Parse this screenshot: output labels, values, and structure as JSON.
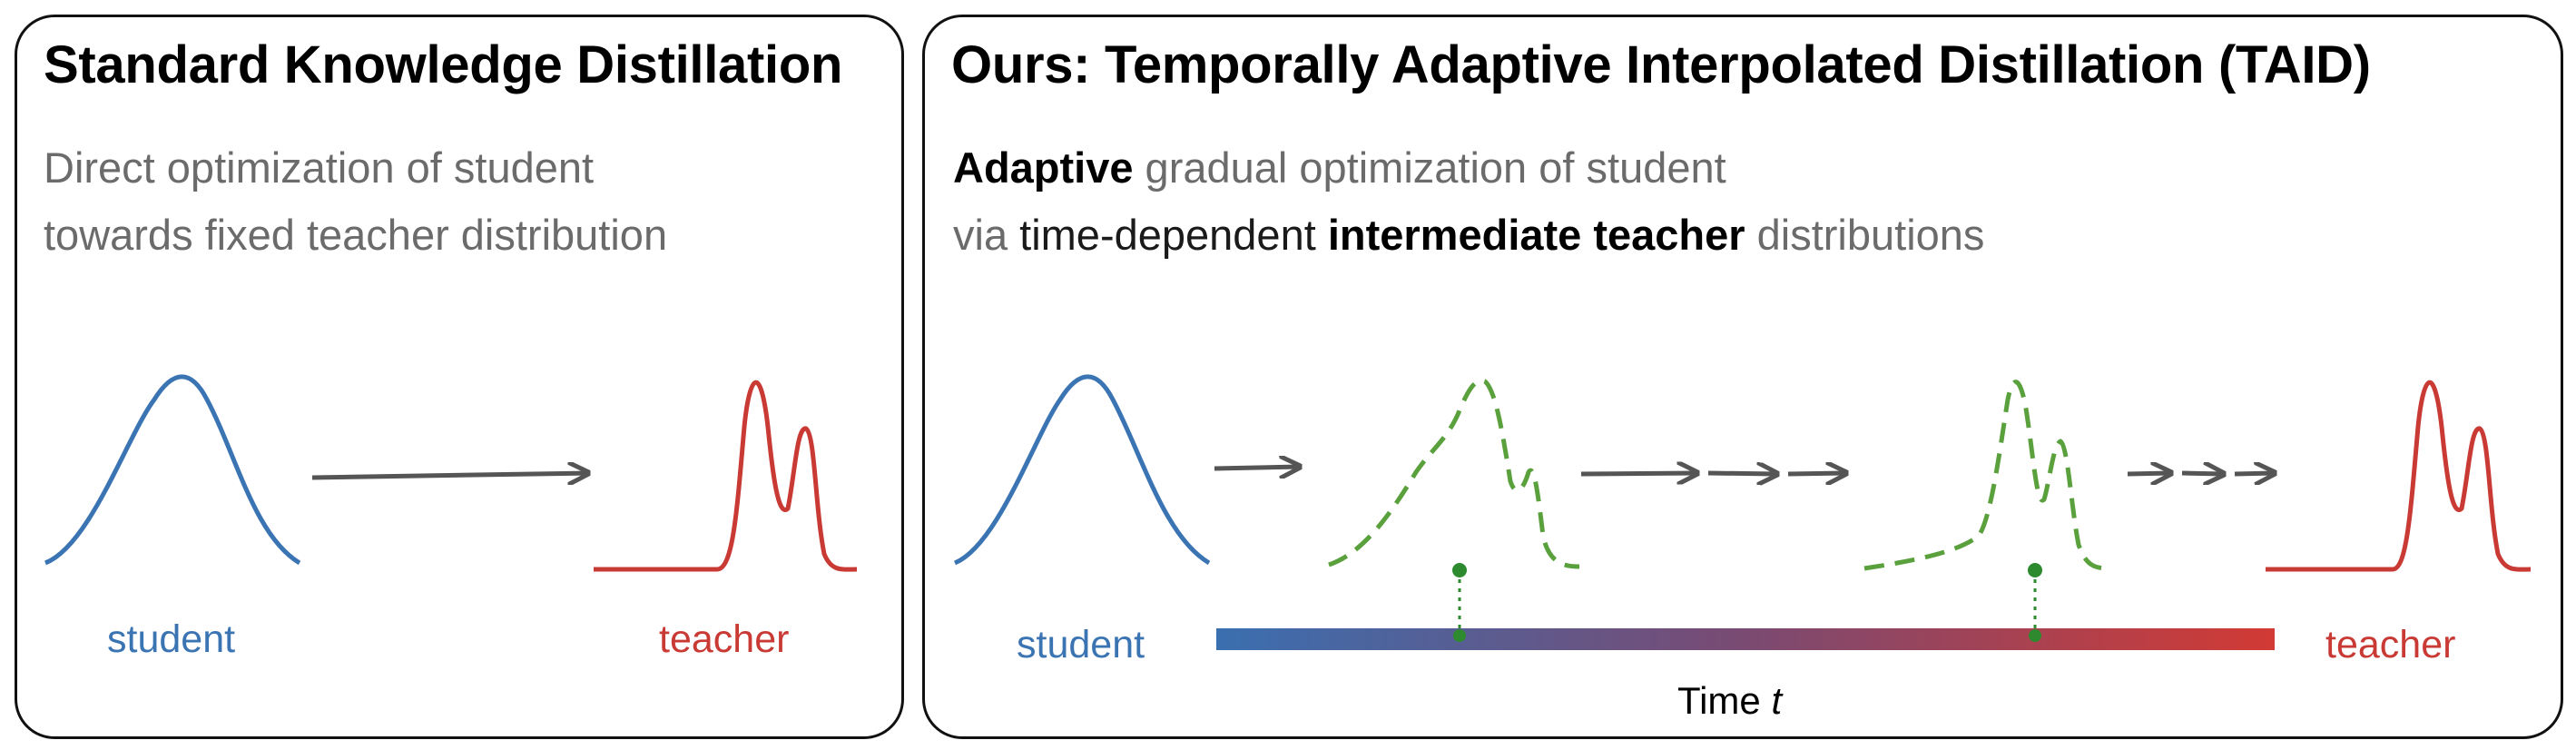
{
  "left_panel": {
    "title": "Standard Knowledge Distillation",
    "desc_line1": "Direct optimization of student",
    "desc_line2": "towards fixed teacher distribution",
    "student_label": "student",
    "teacher_label": "teacher"
  },
  "right_panel": {
    "title": "Ours: Temporally Adaptive Interpolated Distillation (TAID)",
    "desc_line1_bold": "Adaptive",
    "desc_line1_rest": " gradual optimization of student",
    "desc_line2_via": "via",
    "desc_line2_dark": " time-dependent ",
    "desc_line2_bold": "intermediate teacher",
    "desc_line2_rest": " distributions",
    "student_label": "student",
    "teacher_label": "teacher",
    "time_label": "Time",
    "time_var": "t"
  },
  "colors": {
    "student": "#3b74b3",
    "teacher": "#c93a34",
    "intermediate": "#5aa13d",
    "arrow": "#555555",
    "dot": "#2e8a2e"
  }
}
